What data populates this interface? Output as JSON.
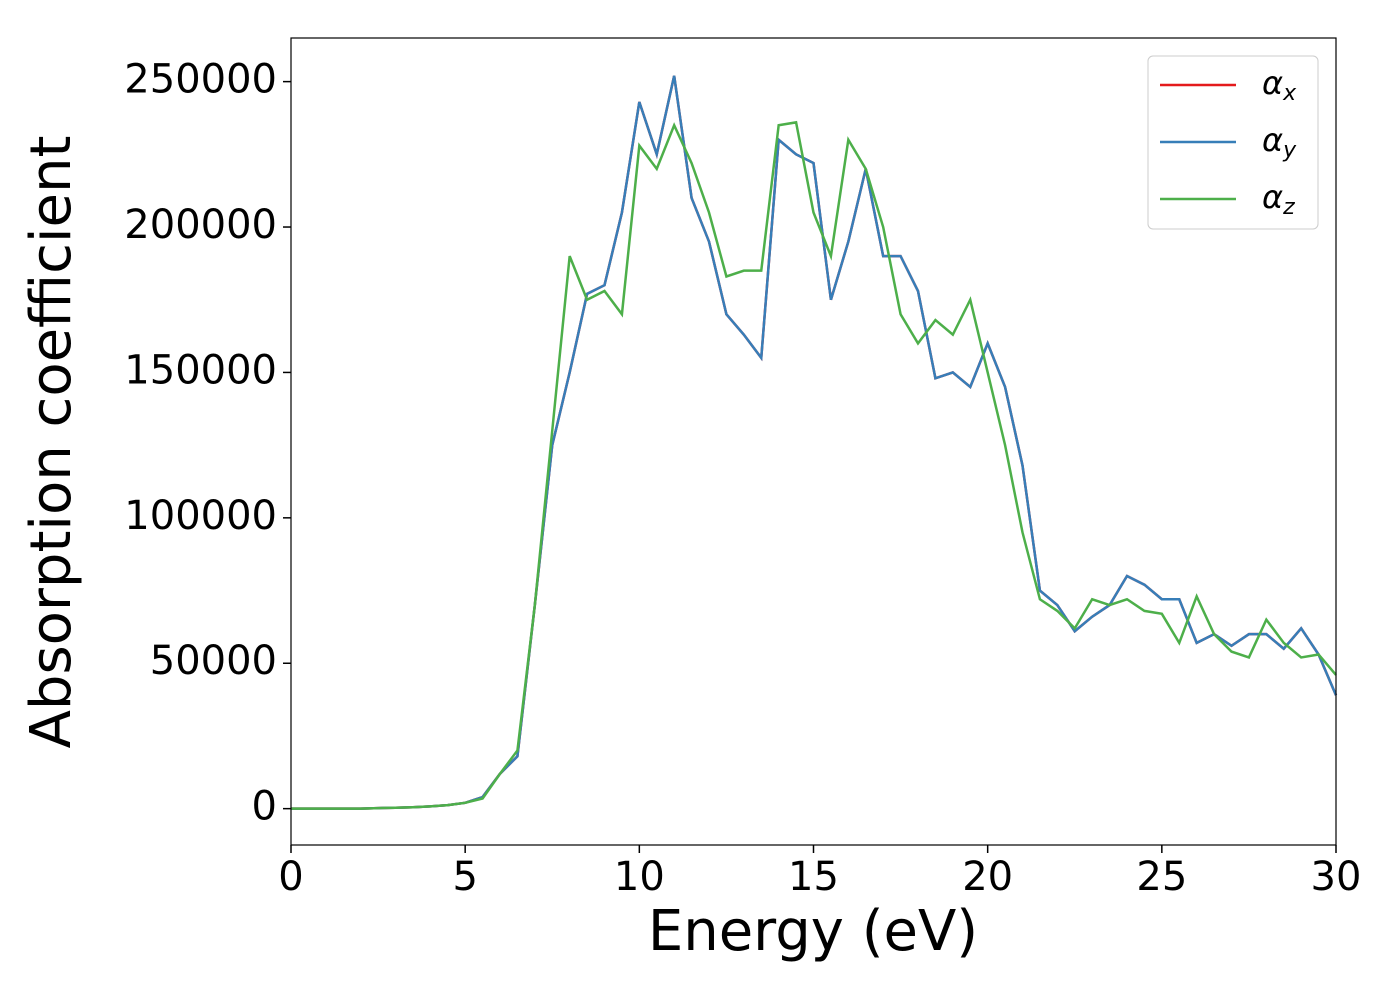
{
  "chart_data": {
    "type": "line",
    "xlabel": "Energy (eV)",
    "ylabel": "Absorption coefficient",
    "x": [
      0,
      0.5,
      1,
      1.5,
      2,
      2.5,
      3,
      3.5,
      4,
      4.5,
      5,
      5.5,
      6,
      6.5,
      7,
      7.5,
      8,
      8.5,
      9,
      9.5,
      10,
      10.5,
      11,
      11.5,
      12,
      12.5,
      13,
      13.5,
      14,
      14.5,
      15,
      15.5,
      16,
      16.5,
      17,
      17.5,
      18,
      18.5,
      19,
      19.5,
      20,
      20.5,
      21,
      21.5,
      22,
      22.5,
      23,
      23.5,
      24,
      24.5,
      25,
      25.5,
      26,
      26.5,
      27,
      27.5,
      28,
      28.5,
      29,
      29.5,
      30
    ],
    "series": [
      {
        "name": "αx",
        "color": "#e41a1c",
        "values": [
          0,
          0,
          0,
          0,
          0,
          200,
          300,
          500,
          800,
          1200,
          2000,
          4000,
          12000,
          18000,
          70000,
          125000,
          150000,
          177000,
          180000,
          205000,
          243000,
          225000,
          252000,
          210000,
          195000,
          170000,
          163000,
          155000,
          230000,
          225000,
          222000,
          175000,
          195000,
          220000,
          190000,
          190000,
          178000,
          148000,
          150000,
          145000,
          160000,
          145000,
          118000,
          75000,
          70000,
          61000,
          66000,
          70000,
          80000,
          77000,
          72000,
          72000,
          57000,
          60000,
          56000,
          60000,
          60000,
          55000,
          62000,
          53000,
          39000
        ]
      },
      {
        "name": "αy",
        "color": "#377eb8",
        "values": [
          0,
          0,
          0,
          0,
          0,
          200,
          300,
          500,
          800,
          1200,
          2000,
          4000,
          12000,
          18000,
          70000,
          125000,
          150000,
          177000,
          180000,
          205000,
          243000,
          225000,
          252000,
          210000,
          195000,
          170000,
          163000,
          155000,
          230000,
          225000,
          222000,
          175000,
          195000,
          220000,
          190000,
          190000,
          178000,
          148000,
          150000,
          145000,
          160000,
          145000,
          118000,
          75000,
          70000,
          61000,
          66000,
          70000,
          80000,
          77000,
          72000,
          72000,
          57000,
          60000,
          56000,
          60000,
          60000,
          55000,
          62000,
          53000,
          39000
        ]
      },
      {
        "name": "αz",
        "color": "#4daf4a",
        "values": [
          0,
          0,
          0,
          0,
          0,
          200,
          300,
          500,
          800,
          1200,
          2000,
          3500,
          12000,
          20000,
          70000,
          130000,
          190000,
          175000,
          178000,
          170000,
          228000,
          220000,
          235000,
          222000,
          205000,
          183000,
          185000,
          185000,
          235000,
          236000,
          205000,
          190000,
          230000,
          220000,
          200000,
          170000,
          160000,
          168000,
          163000,
          175000,
          150000,
          125000,
          95000,
          72000,
          68000,
          62000,
          72000,
          70000,
          72000,
          68000,
          67000,
          57000,
          73000,
          60000,
          54000,
          52000,
          65000,
          57000,
          52000,
          53000,
          46000
        ]
      }
    ],
    "xlim": [
      0,
      30
    ],
    "xticks": [
      0,
      5,
      10,
      15,
      20,
      25,
      30
    ],
    "ylim": [
      -12500,
      265000
    ],
    "yticks": [
      0,
      50000,
      100000,
      150000,
      200000,
      250000
    ],
    "legend": "upper right",
    "grid": false
  }
}
